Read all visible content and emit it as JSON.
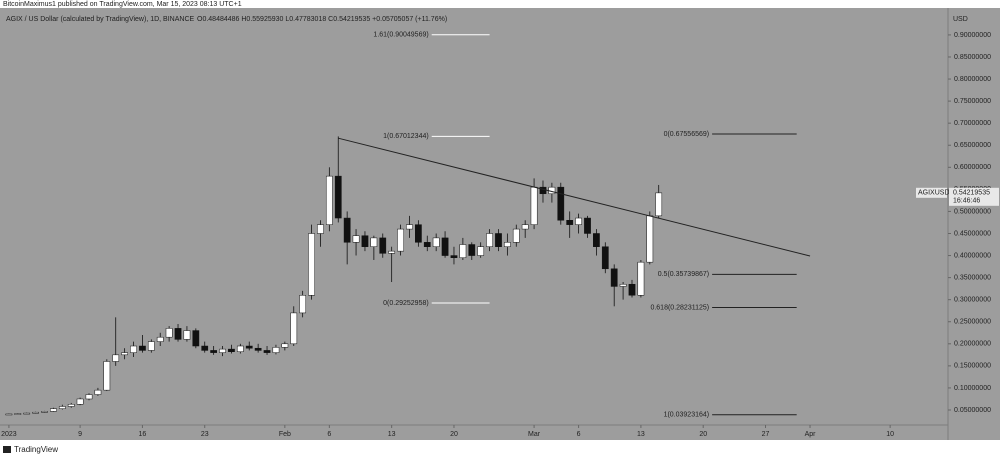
{
  "chart_data": {
    "type": "candlestick",
    "header": "BitcoinMaximus1 published on TradingView.com, Mar 15, 2023 08:13 UTC+1",
    "title": "AGIX / US Dollar (calculated by TradingView), 1D, BINANCE",
    "ohlc_text": "O0.48484486  H0.55925930  L0.47783018  C0.54219535  +0.05705057 (+11.76%)",
    "currency": "USD",
    "symbol": "AGIXUSD",
    "last_price": {
      "value": 0.54219535,
      "label": "0.54219535"
    },
    "countdown": "16:46:46",
    "footer": "TradingView",
    "up_color": "#ffffff",
    "down_color": "#111111",
    "background": "#9d9d9d",
    "x": [
      0,
      1,
      2,
      3,
      4,
      5,
      6,
      7,
      8,
      9,
      10,
      11,
      12,
      13,
      14,
      15,
      16,
      17,
      18,
      19,
      20,
      21,
      22,
      23,
      24,
      25,
      26,
      27,
      28,
      29,
      30,
      31,
      32,
      33,
      34,
      35,
      36,
      37,
      38,
      39,
      40,
      41,
      42,
      43,
      44,
      45,
      46,
      47,
      48,
      49,
      50,
      51,
      52,
      53,
      54,
      55,
      56,
      57,
      58,
      59,
      60,
      61,
      62,
      63,
      64,
      65,
      66,
      67,
      68,
      69,
      70,
      71,
      72,
      73
    ],
    "ohlc": [
      [
        0.04,
        0.042,
        0.039,
        0.041
      ],
      [
        0.041,
        0.043,
        0.04,
        0.042
      ],
      [
        0.042,
        0.044,
        0.041,
        0.043
      ],
      [
        0.043,
        0.046,
        0.042,
        0.045
      ],
      [
        0.045,
        0.048,
        0.044,
        0.047
      ],
      [
        0.047,
        0.055,
        0.046,
        0.053
      ],
      [
        0.053,
        0.062,
        0.051,
        0.058
      ],
      [
        0.058,
        0.066,
        0.055,
        0.063
      ],
      [
        0.063,
        0.078,
        0.061,
        0.075
      ],
      [
        0.075,
        0.088,
        0.072,
        0.085
      ],
      [
        0.085,
        0.1,
        0.082,
        0.095
      ],
      [
        0.095,
        0.165,
        0.093,
        0.16
      ],
      [
        0.16,
        0.26,
        0.15,
        0.175
      ],
      [
        0.175,
        0.19,
        0.165,
        0.18
      ],
      [
        0.18,
        0.205,
        0.17,
        0.195
      ],
      [
        0.195,
        0.22,
        0.18,
        0.185
      ],
      [
        0.185,
        0.21,
        0.18,
        0.205
      ],
      [
        0.205,
        0.225,
        0.195,
        0.215
      ],
      [
        0.215,
        0.24,
        0.205,
        0.235
      ],
      [
        0.235,
        0.245,
        0.205,
        0.21
      ],
      [
        0.21,
        0.24,
        0.205,
        0.23
      ],
      [
        0.23,
        0.235,
        0.19,
        0.195
      ],
      [
        0.195,
        0.205,
        0.18,
        0.185
      ],
      [
        0.185,
        0.195,
        0.175,
        0.18
      ],
      [
        0.18,
        0.195,
        0.172,
        0.188
      ],
      [
        0.188,
        0.198,
        0.178,
        0.182
      ],
      [
        0.182,
        0.2,
        0.178,
        0.195
      ],
      [
        0.195,
        0.205,
        0.185,
        0.19
      ],
      [
        0.19,
        0.2,
        0.18,
        0.185
      ],
      [
        0.185,
        0.195,
        0.175,
        0.18
      ],
      [
        0.18,
        0.198,
        0.176,
        0.192
      ],
      [
        0.192,
        0.205,
        0.185,
        0.2
      ],
      [
        0.2,
        0.285,
        0.195,
        0.27
      ],
      [
        0.27,
        0.32,
        0.26,
        0.31
      ],
      [
        0.31,
        0.47,
        0.3,
        0.45
      ],
      [
        0.45,
        0.48,
        0.42,
        0.47
      ],
      [
        0.47,
        0.6,
        0.455,
        0.58
      ],
      [
        0.58,
        0.67,
        0.475,
        0.485
      ],
      [
        0.485,
        0.5,
        0.38,
        0.43
      ],
      [
        0.43,
        0.46,
        0.4,
        0.445
      ],
      [
        0.445,
        0.455,
        0.41,
        0.42
      ],
      [
        0.42,
        0.445,
        0.39,
        0.44
      ],
      [
        0.44,
        0.45,
        0.395,
        0.405
      ],
      [
        0.405,
        0.42,
        0.34,
        0.41
      ],
      [
        0.41,
        0.47,
        0.4,
        0.46
      ],
      [
        0.46,
        0.49,
        0.44,
        0.47
      ],
      [
        0.47,
        0.48,
        0.42,
        0.43
      ],
      [
        0.43,
        0.445,
        0.41,
        0.42
      ],
      [
        0.42,
        0.45,
        0.41,
        0.44
      ],
      [
        0.44,
        0.455,
        0.395,
        0.4
      ],
      [
        0.4,
        0.42,
        0.38,
        0.395
      ],
      [
        0.395,
        0.44,
        0.39,
        0.425
      ],
      [
        0.425,
        0.43,
        0.39,
        0.4
      ],
      [
        0.4,
        0.43,
        0.395,
        0.42
      ],
      [
        0.42,
        0.46,
        0.41,
        0.45
      ],
      [
        0.45,
        0.46,
        0.41,
        0.42
      ],
      [
        0.42,
        0.45,
        0.4,
        0.43
      ],
      [
        0.43,
        0.47,
        0.42,
        0.46
      ],
      [
        0.46,
        0.48,
        0.44,
        0.47
      ],
      [
        0.47,
        0.575,
        0.46,
        0.555
      ],
      [
        0.555,
        0.57,
        0.52,
        0.54
      ],
      [
        0.54,
        0.565,
        0.52,
        0.555
      ],
      [
        0.555,
        0.565,
        0.47,
        0.48
      ],
      [
        0.48,
        0.5,
        0.44,
        0.47
      ],
      [
        0.47,
        0.495,
        0.45,
        0.485
      ],
      [
        0.485,
        0.49,
        0.44,
        0.45
      ],
      [
        0.45,
        0.46,
        0.4,
        0.42
      ],
      [
        0.42,
        0.43,
        0.36,
        0.37
      ],
      [
        0.37,
        0.38,
        0.285,
        0.33
      ],
      [
        0.33,
        0.34,
        0.3,
        0.335
      ],
      [
        0.335,
        0.345,
        0.305,
        0.31
      ],
      [
        0.31,
        0.39,
        0.305,
        0.385
      ],
      [
        0.385,
        0.5,
        0.38,
        0.49
      ],
      [
        0.49,
        0.56,
        0.485,
        0.542
      ]
    ],
    "xlim": [
      -1,
      105.5
    ],
    "xticks": [
      {
        "value": 0,
        "label": "2023"
      },
      {
        "value": 8,
        "label": "9"
      },
      {
        "value": 15,
        "label": "16"
      },
      {
        "value": 22,
        "label": "23"
      },
      {
        "value": 31,
        "label": "Feb"
      },
      {
        "value": 36,
        "label": "6"
      },
      {
        "value": 43,
        "label": "13"
      },
      {
        "value": 50,
        "label": "20"
      },
      {
        "value": 59,
        "label": "Mar"
      },
      {
        "value": 64,
        "label": "6"
      },
      {
        "value": 71,
        "label": "13"
      },
      {
        "value": 78,
        "label": "20"
      },
      {
        "value": 85,
        "label": "27"
      },
      {
        "value": 90,
        "label": "Apr"
      },
      {
        "value": 99,
        "label": "10"
      }
    ],
    "ylim": [
      0.016,
      0.961
    ],
    "yticks": [
      {
        "value": 0.05,
        "label": "0.05000000"
      },
      {
        "value": 0.1,
        "label": "0.10000000"
      },
      {
        "value": 0.15,
        "label": "0.15000000"
      },
      {
        "value": 0.2,
        "label": "0.20000000"
      },
      {
        "value": 0.25,
        "label": "0.25000000"
      },
      {
        "value": 0.3,
        "label": "0.30000000"
      },
      {
        "value": 0.35,
        "label": "0.35000000"
      },
      {
        "value": 0.4,
        "label": "0.40000000"
      },
      {
        "value": 0.45,
        "label": "0.45000000"
      },
      {
        "value": 0.5,
        "label": "0.50000000"
      },
      {
        "value": 0.55,
        "label": "0.55000000"
      },
      {
        "value": 0.6,
        "label": "0.60000000"
      },
      {
        "value": 0.65,
        "label": "0.65000000"
      },
      {
        "value": 0.7,
        "label": "0.70000000"
      },
      {
        "value": 0.75,
        "label": "0.75000000"
      },
      {
        "value": 0.8,
        "label": "0.80000000"
      },
      {
        "value": 0.85,
        "label": "0.85000000"
      },
      {
        "value": 0.9,
        "label": "0.90000000"
      }
    ],
    "trendline": {
      "x": [
        37,
        90
      ],
      "y": [
        0.666,
        0.399
      ]
    },
    "fib_groups": [
      {
        "x": [
          47.5,
          54
        ],
        "levels": [
          {
            "value": 0.90049569,
            "label": "1.61(0.90049569)"
          },
          {
            "value": 0.67012344,
            "label": "1(0.67012344)"
          },
          {
            "value": 0.29252958,
            "label": "0(0.29252958)"
          }
        ]
      },
      {
        "x": [
          79,
          88.5
        ],
        "levels": [
          {
            "value": 0.67556569,
            "label": "0(0.67556569)"
          },
          {
            "value": 0.35739867,
            "label": "0.5(0.35739867)"
          },
          {
            "value": 0.28231125,
            "label": "0.618(0.28231125)"
          },
          {
            "value": 0.03923164,
            "label": "1(0.03923164)"
          }
        ]
      }
    ]
  }
}
